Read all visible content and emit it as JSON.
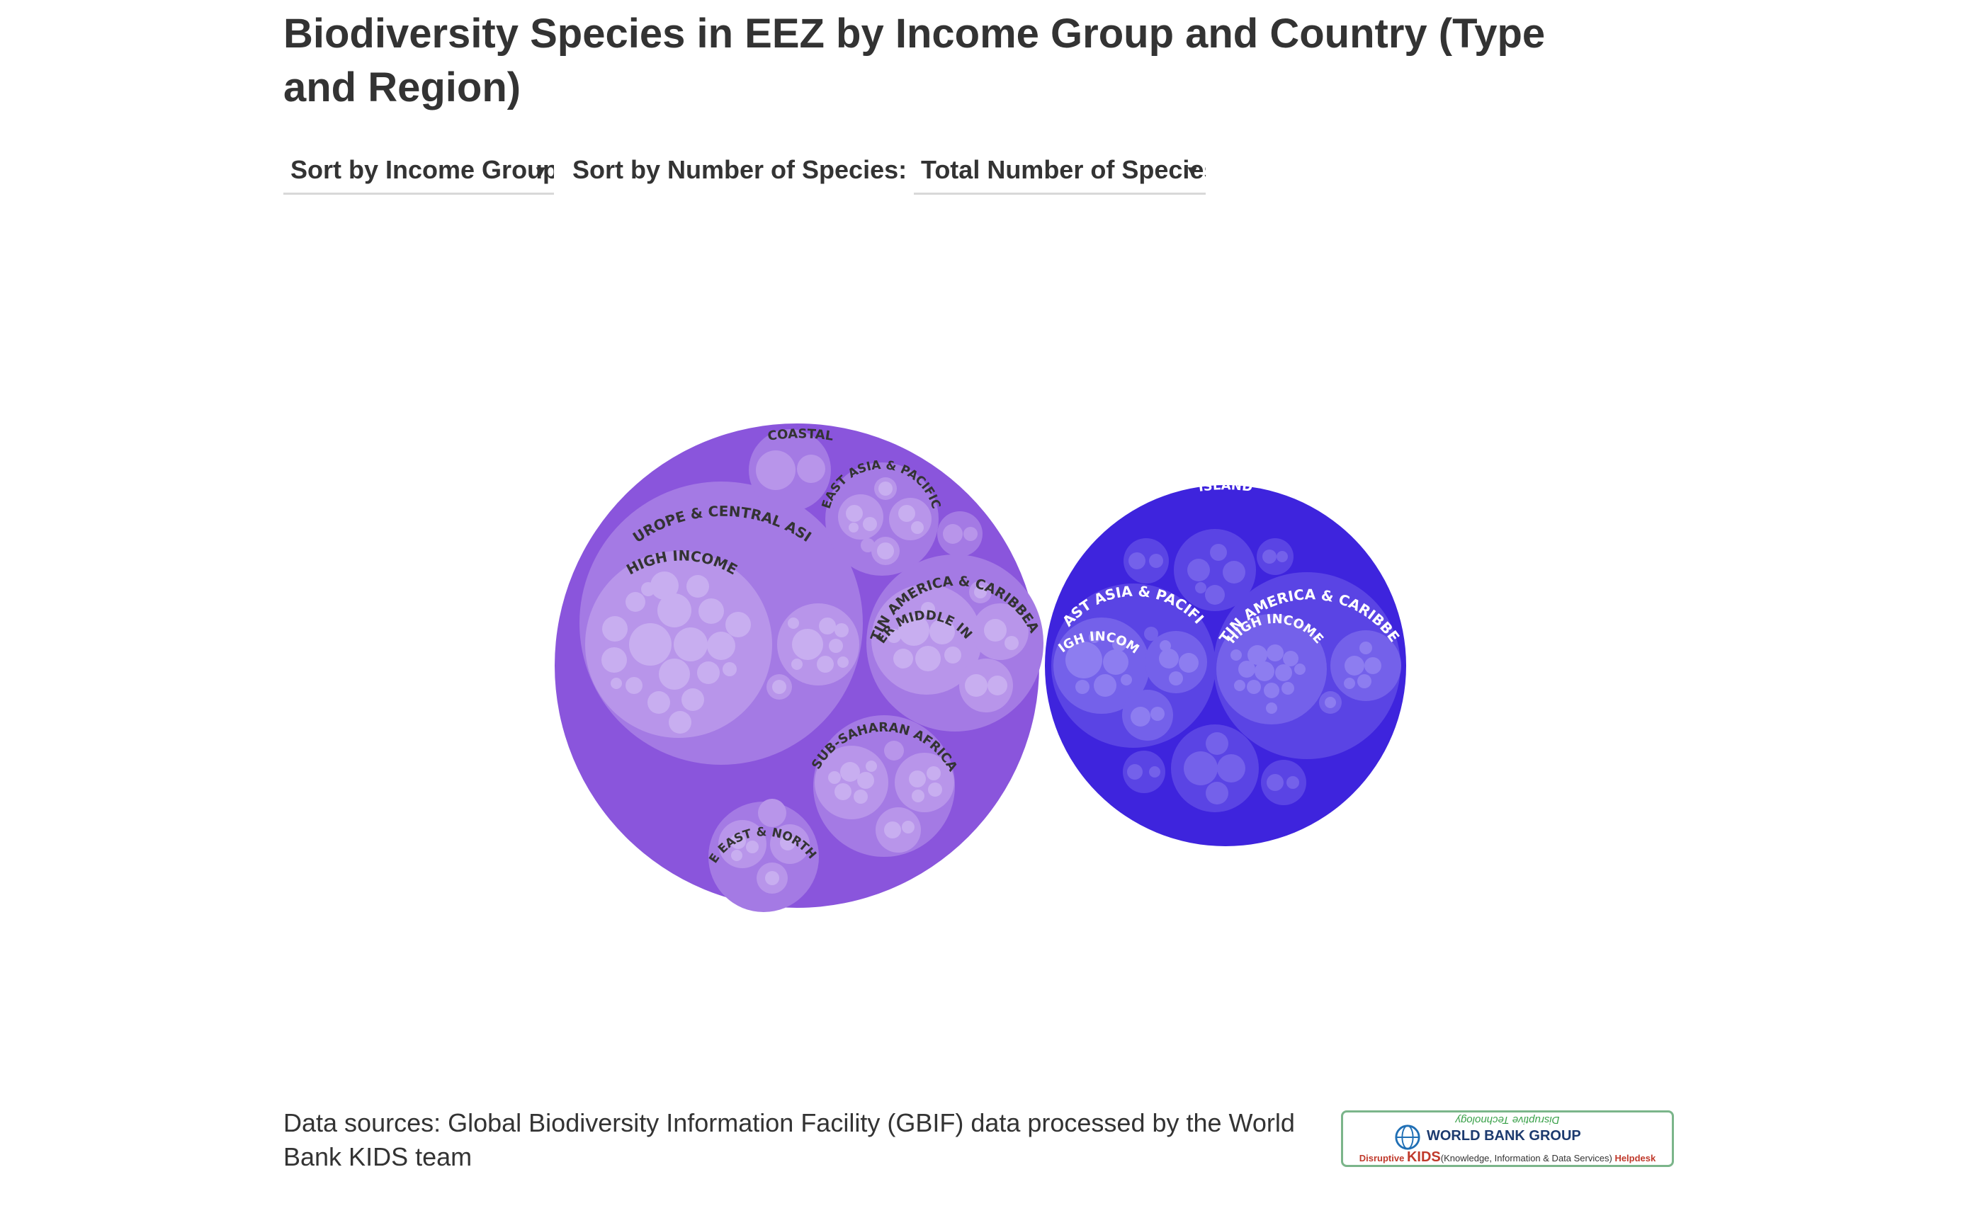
{
  "title": "Biodiversity Species in EEZ by Income Group and Country (Type and Region)",
  "controls": {
    "income_select": "Sort by Income Group",
    "species_label": "Sort by Number of Species:",
    "species_select": "Total Number of Species"
  },
  "source": "Data sources: Global Biodiversity Information Facility (GBIF) data processed by the World Bank KIDS team",
  "logo": {
    "tagline": "Disruptive Technology",
    "org": "WORLD BANK GROUP",
    "line_disruptive": "Disruptive",
    "line_kids": "KIDS",
    "line_rest": "(Knowledge, Information & Data Services)",
    "line_helpdesk": "Helpdesk"
  },
  "colors": {
    "coastal": "#8a55dc",
    "island": "#3e24dd",
    "label_dark": "#333333",
    "label_light": "#ffffff"
  },
  "chart_data": {
    "type": "circle-packing",
    "title": "Biodiversity Species in EEZ by Income Group and Country (Type and Region)",
    "hierarchy": [
      "Type",
      "Region",
      "Income Group",
      "Country"
    ],
    "groups": [
      {
        "name": "COASTAL",
        "regions": [
          {
            "name": "EUROPE & CENTRAL ASIA",
            "income_groups": [
              "HIGH INCOME"
            ]
          },
          {
            "name": "EAST ASIA & PACIFIC",
            "income_groups": []
          },
          {
            "name": "LATIN AMERICA & CARIBBEAN",
            "income_groups": [
              "UPPER MIDDLE INCO..."
            ]
          },
          {
            "name": "SUB-SAHARAN AFRICA",
            "income_groups": []
          },
          {
            "name": "MIDDLE EAST & NORTH AFR...",
            "income_groups": []
          }
        ]
      },
      {
        "name": "ISLAND",
        "regions": [
          {
            "name": "EAST ASIA & PACIFIC",
            "income_groups": [
              "HIGH INCOME"
            ]
          },
          {
            "name": "LATIN AMERICA & CARIBBEAN",
            "income_groups": [
              "HIGH INCOME"
            ]
          }
        ]
      }
    ]
  }
}
